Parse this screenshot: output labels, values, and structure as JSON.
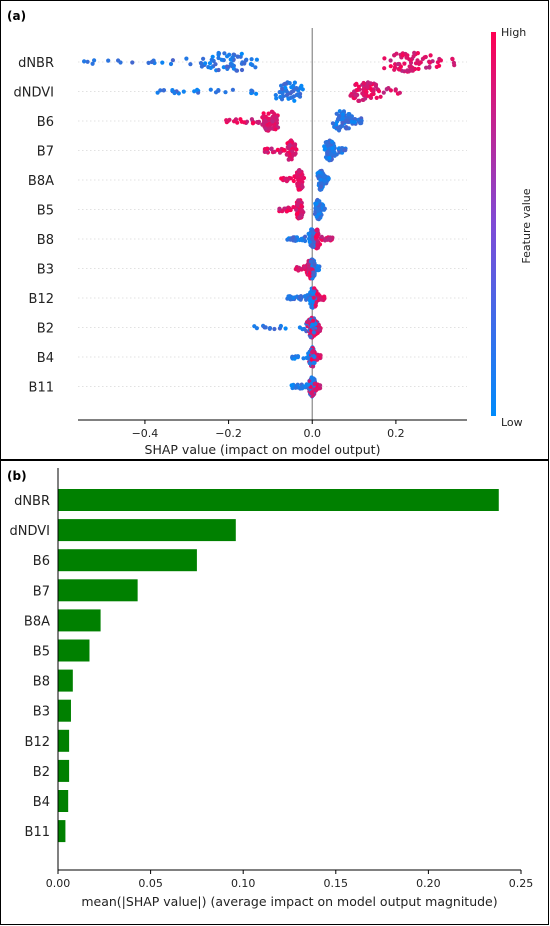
{
  "chart_data": [
    {
      "panel": "(a)",
      "type": "scatter",
      "xlabel": "SHAP value (impact on model output)",
      "ylabel": "",
      "xlim": [
        -0.56,
        0.37
      ],
      "xticks": [
        -0.4,
        -0.2,
        0.0,
        0.2
      ],
      "xtick_labels": [
        "−0.4",
        "−0.2",
        "0.0",
        "0.2"
      ],
      "features": [
        "dNBR",
        "dNDVI",
        "B6",
        "B7",
        "B8A",
        "B5",
        "B8",
        "B3",
        "B12",
        "B2",
        "B4",
        "B11"
      ],
      "colorbar": {
        "label": "Feature value",
        "high": "High",
        "low": "Low",
        "high_color": "#ff0052",
        "low_color": "#008bfb"
      },
      "distributions": [
        {
          "feature": "dNBR",
          "min": -0.55,
          "max": 0.34,
          "peak_low": -0.2,
          "peak_high": 0.23,
          "high_is_positive": true
        },
        {
          "feature": "dNDVI",
          "min": -0.37,
          "max": 0.21,
          "peak_low": -0.05,
          "peak_high": 0.12,
          "high_is_positive": true
        },
        {
          "feature": "B6",
          "min": -0.21,
          "max": 0.12,
          "peak_low": 0.07,
          "peak_high": -0.1,
          "high_is_positive": false
        },
        {
          "feature": "B7",
          "min": -0.12,
          "max": 0.08,
          "peak_low": 0.04,
          "peak_high": -0.05,
          "high_is_positive": false
        },
        {
          "feature": "B8A",
          "min": -0.08,
          "max": 0.04,
          "peak_low": 0.02,
          "peak_high": -0.03,
          "high_is_positive": false
        },
        {
          "feature": "B5",
          "min": -0.08,
          "max": 0.03,
          "peak_low": 0.015,
          "peak_high": -0.03,
          "high_is_positive": false
        },
        {
          "feature": "B8",
          "min": -0.06,
          "max": 0.05,
          "peak_low": 0.0,
          "peak_high": 0.01,
          "high_is_positive": true
        },
        {
          "feature": "B3",
          "min": -0.04,
          "max": 0.02,
          "peak_low": 0.0,
          "peak_high": -0.005,
          "high_is_positive": false
        },
        {
          "feature": "B12",
          "min": -0.06,
          "max": 0.03,
          "peak_low": 0.0,
          "peak_high": 0.005,
          "high_is_positive": true
        },
        {
          "feature": "B2",
          "min": -0.14,
          "max": 0.02,
          "peak_low": 0.0,
          "peak_high": 0.0,
          "high_is_positive": true
        },
        {
          "feature": "B4",
          "min": -0.05,
          "max": 0.02,
          "peak_low": 0.0,
          "peak_high": 0.0,
          "high_is_positive": true
        },
        {
          "feature": "B11",
          "min": -0.05,
          "max": 0.02,
          "peak_low": 0.0,
          "peak_high": 0.0,
          "high_is_positive": true
        }
      ]
    },
    {
      "panel": "(b)",
      "type": "bar",
      "orientation": "horizontal",
      "xlabel": "mean(|SHAP value|) (average impact on model output magnitude)",
      "ylabel": "",
      "xlim": [
        0,
        0.25
      ],
      "xticks": [
        0.0,
        0.05,
        0.1,
        0.15,
        0.2,
        0.25
      ],
      "xtick_labels": [
        "0.00",
        "0.05",
        "0.10",
        "0.15",
        "0.20",
        "0.25"
      ],
      "categories": [
        "dNBR",
        "dNDVI",
        "B6",
        "B7",
        "B8A",
        "B5",
        "B8",
        "B3",
        "B12",
        "B2",
        "B4",
        "B11"
      ],
      "values": [
        0.238,
        0.096,
        0.075,
        0.043,
        0.023,
        0.017,
        0.008,
        0.007,
        0.006,
        0.006,
        0.0055,
        0.004
      ],
      "bar_color": "#008000"
    }
  ]
}
